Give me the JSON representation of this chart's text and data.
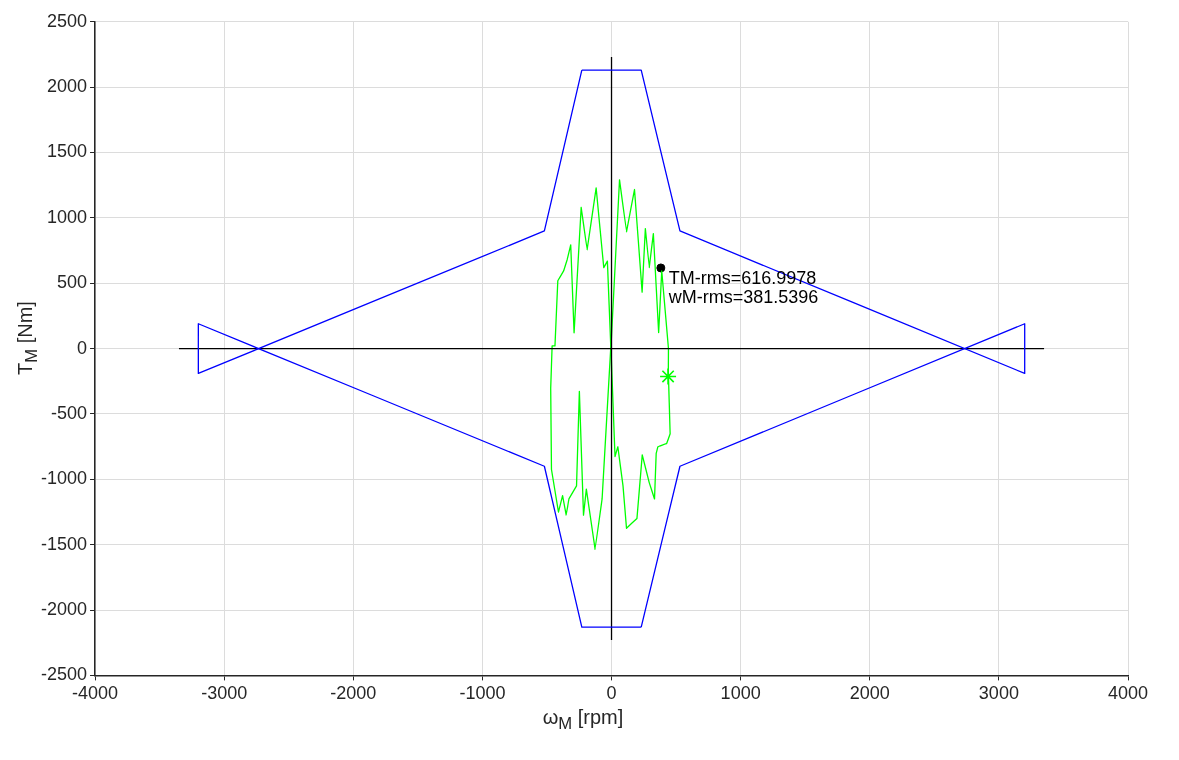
{
  "chart_data": {
    "type": "line",
    "xlabel": "ω$_{M}$ [rpm]",
    "ylabel": "T$_{M}$ [Nm]",
    "xlim": [
      -4000,
      4000
    ],
    "xticks": [
      -4000,
      -3000,
      -2000,
      -1000,
      0,
      1000,
      2000,
      3000,
      4000
    ],
    "ylim": [
      -2500,
      2500
    ],
    "yticks": [
      -2500,
      -2000,
      -1500,
      -1000,
      -500,
      0,
      500,
      1000,
      1500,
      2000,
      2500
    ],
    "grid": true,
    "legend": false,
    "series": [
      {
        "type": "line",
        "color": "#0000ff",
        "marker": "none",
        "x": [
          -230,
          -520,
          -3200,
          -3200,
          -520,
          -230,
          230
        ],
        "values": [
          2130,
          900,
          -190,
          190,
          -900,
          -2130,
          -2130
        ]
      },
      {
        "type": "line",
        "color": "#0000ff",
        "marker": "none",
        "x": [
          230,
          530,
          3200,
          3200,
          530,
          230,
          -230
        ],
        "values": [
          -2130,
          -900,
          190,
          -190,
          900,
          2130,
          2130
        ]
      },
      {
        "type": "line",
        "color": "#000000",
        "marker": "none",
        "x": [
          -3350,
          3350
        ],
        "values": [
          0,
          0
        ]
      },
      {
        "type": "line",
        "color": "#000000",
        "marker": "none",
        "x": [
          0,
          0
        ],
        "values": [
          -2230,
          2230
        ]
      },
      {
        "type": "line",
        "color": "#00ff00",
        "marker": "none",
        "x": [
          -5,
          62,
          116,
          178,
          237,
          262,
          292,
          324,
          365,
          389,
          441,
          440,
          454,
          427,
          359,
          346,
          333,
          292,
          238,
          197,
          116,
          89,
          49,
          27,
          -5
        ],
        "values": [
          0,
          1291,
          893,
          1217,
          432,
          918,
          619,
          880,
          123,
          594,
          0,
          -176,
          -652,
          -726,
          -751,
          -801,
          -1150,
          -1025,
          -813,
          -1299,
          -1374,
          -1050,
          -751,
          -826,
          21
        ]
      },
      {
        "type": "line",
        "color": "#00ff00",
        "marker": "none",
        "x": [
          -5,
          -73,
          -127,
          -195,
          -217,
          -249,
          -271,
          -330,
          -351,
          -379,
          -411,
          -465,
          -471,
          -460,
          -438,
          -416,
          -371,
          -343,
          -316,
          -290,
          -235,
          -189,
          -119,
          -60,
          -32,
          -5
        ],
        "values": [
          21,
          -1150,
          -1536,
          -1075,
          -1274,
          -327,
          -1050,
          -1150,
          -1274,
          -1125,
          -1250,
          -925,
          -303,
          21,
          21,
          519,
          594,
          682,
          794,
          121,
          1080,
          756,
          1229,
          619,
          669,
          0
        ]
      },
      {
        "type": "scatter",
        "color": "#00ff00",
        "marker": "cross",
        "x": [
          438
        ],
        "values": [
          -213
        ]
      },
      {
        "type": "scatter",
        "color": "#000000",
        "marker": "circle",
        "x": [
          382
        ],
        "values": [
          617
        ]
      }
    ],
    "annotations": [
      {
        "text": "TM-rms=616.9978",
        "x": 381.5396,
        "y": 616.9978
      },
      {
        "text": "wM-rms=381.5396",
        "x": 381.5396,
        "y": 616.9978
      }
    ]
  }
}
